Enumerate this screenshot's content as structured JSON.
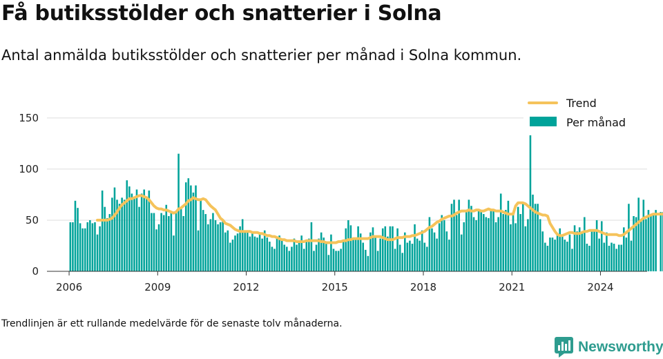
{
  "title": "Få butiksstölder och snatterier i Solna",
  "subtitle": "Antal anmälda butiksstölder och snatterier per månad i Solna kommun.",
  "footnote": "Trendlinjen är ett rullande medelvärde för de senaste tolv månaderna.",
  "brand": "Newsworthy",
  "colors": {
    "bars": "#00a39a",
    "trend": "#f5c35b",
    "grid": "#dddddd",
    "brand": "#2e9c8f"
  },
  "chart_data": {
    "type": "bar",
    "title": "Få butiksstölder och snatterier i Solna",
    "subtitle": "Antal anmälda butiksstölder och snatterier per månad i Solna kommun.",
    "xlabel": "",
    "ylabel": "",
    "ylim": [
      0,
      160
    ],
    "yticks": [
      0,
      50,
      100,
      150
    ],
    "xticks": [
      "2006",
      "2009",
      "2012",
      "2015",
      "2018",
      "2021",
      "2024"
    ],
    "grid": true,
    "legend_position": "top-right",
    "start": "2006-01",
    "x": "monthly, 2006-01 to 2024-07",
    "series": [
      {
        "name": "Per månad",
        "kind": "bar",
        "values": [
          48,
          48,
          69,
          62,
          47,
          42,
          42,
          48,
          50,
          47,
          48,
          36,
          44,
          79,
          63,
          52,
          56,
          72,
          82,
          70,
          66,
          72,
          70,
          89,
          83,
          76,
          71,
          80,
          63,
          76,
          80,
          73,
          79,
          57,
          57,
          41,
          46,
          57,
          55,
          65,
          54,
          57,
          35,
          59,
          115,
          63,
          54,
          87,
          91,
          84,
          77,
          84,
          40,
          70,
          60,
          56,
          46,
          51,
          57,
          50,
          46,
          48,
          49,
          38,
          40,
          28,
          31,
          35,
          37,
          44,
          51,
          40,
          38,
          34,
          38,
          34,
          33,
          36,
          32,
          40,
          33,
          29,
          24,
          22,
          32,
          35,
          30,
          26,
          24,
          20,
          24,
          32,
          26,
          28,
          35,
          22,
          30,
          32,
          48,
          20,
          26,
          32,
          38,
          33,
          28,
          16,
          36,
          22,
          20,
          20,
          22,
          30,
          42,
          50,
          45,
          32,
          32,
          44,
          37,
          28,
          21,
          15,
          38,
          43,
          33,
          20,
          32,
          42,
          44,
          34,
          44,
          44,
          22,
          42,
          26,
          18,
          38,
          28,
          30,
          27,
          46,
          32,
          30,
          40,
          28,
          24,
          53,
          42,
          38,
          32,
          47,
          55,
          50,
          39,
          31,
          66,
          70,
          55,
          70,
          36,
          48,
          58,
          70,
          64,
          53,
          50,
          60,
          60,
          56,
          53,
          52,
          60,
          60,
          48,
          53,
          76,
          56,
          60,
          69,
          46,
          56,
          47,
          63,
          56,
          67,
          44,
          51,
          155,
          75,
          66,
          66,
          51,
          39,
          28,
          25,
          33,
          33,
          31,
          36,
          42,
          36,
          31,
          29,
          36,
          22,
          45,
          39,
          43,
          38,
          53,
          27,
          25,
          40,
          39,
          50,
          32,
          49,
          28,
          38,
          25,
          28,
          27,
          22,
          26,
          26,
          43,
          33,
          66,
          30,
          54,
          53,
          72,
          51,
          70,
          51,
          60,
          54,
          56,
          60,
          0,
          58,
          58,
          62,
          0,
          0,
          0,
          38,
          38,
          0,
          47,
          48,
          40,
          48,
          38,
          19
        ]
      },
      {
        "name": "Trend",
        "kind": "line",
        "values": [
          null,
          null,
          null,
          null,
          null,
          null,
          null,
          null,
          null,
          null,
          null,
          50,
          50,
          50,
          50,
          50,
          51,
          52,
          55,
          58,
          62,
          65,
          67,
          69,
          71,
          71,
          72,
          73,
          74,
          74,
          73,
          72,
          70,
          67,
          64,
          62,
          61,
          61,
          60,
          60,
          59,
          58,
          57,
          58,
          61,
          62,
          64,
          66,
          69,
          70,
          72,
          71,
          70,
          70,
          71,
          70,
          67,
          64,
          62,
          60,
          56,
          52,
          50,
          47,
          46,
          45,
          43,
          41,
          40,
          39,
          39,
          39,
          39,
          39,
          38,
          38,
          38,
          37,
          37,
          36,
          35,
          35,
          34,
          34,
          33,
          32,
          31,
          31,
          30,
          30,
          30,
          30,
          29,
          29,
          29,
          29,
          30,
          30,
          30,
          30,
          30,
          30,
          29,
          29,
          28,
          28,
          28,
          28,
          28,
          29,
          29,
          30,
          30,
          31,
          31,
          32,
          32,
          32,
          32,
          32,
          32,
          32,
          33,
          34,
          34,
          34,
          34,
          33,
          32,
          31,
          31,
          31,
          32,
          33,
          33,
          33,
          34,
          34,
          34,
          35,
          35,
          36,
          37,
          38,
          39,
          41,
          43,
          44,
          46,
          48,
          49,
          51,
          52,
          53,
          54,
          54,
          55,
          57,
          58,
          59,
          59,
          59,
          60,
          59,
          59,
          60,
          60,
          59,
          59,
          60,
          61,
          60,
          60,
          59,
          59,
          59,
          58,
          57,
          56,
          56,
          56,
          64,
          67,
          67,
          67,
          66,
          64,
          62,
          60,
          58,
          57,
          56,
          55,
          55,
          54,
          47,
          43,
          39,
          36,
          35,
          35,
          36,
          37,
          38,
          38,
          37,
          37,
          37,
          38,
          39,
          39,
          40,
          40,
          40,
          40,
          39,
          38,
          37,
          36,
          36,
          36,
          36,
          36,
          35,
          35,
          36,
          38,
          40,
          42,
          44,
          46,
          48,
          50,
          52,
          53,
          54,
          55,
          56,
          56,
          56,
          56,
          56,
          56,
          55,
          55,
          54,
          54,
          53,
          51,
          49,
          46
        ]
      }
    ]
  }
}
